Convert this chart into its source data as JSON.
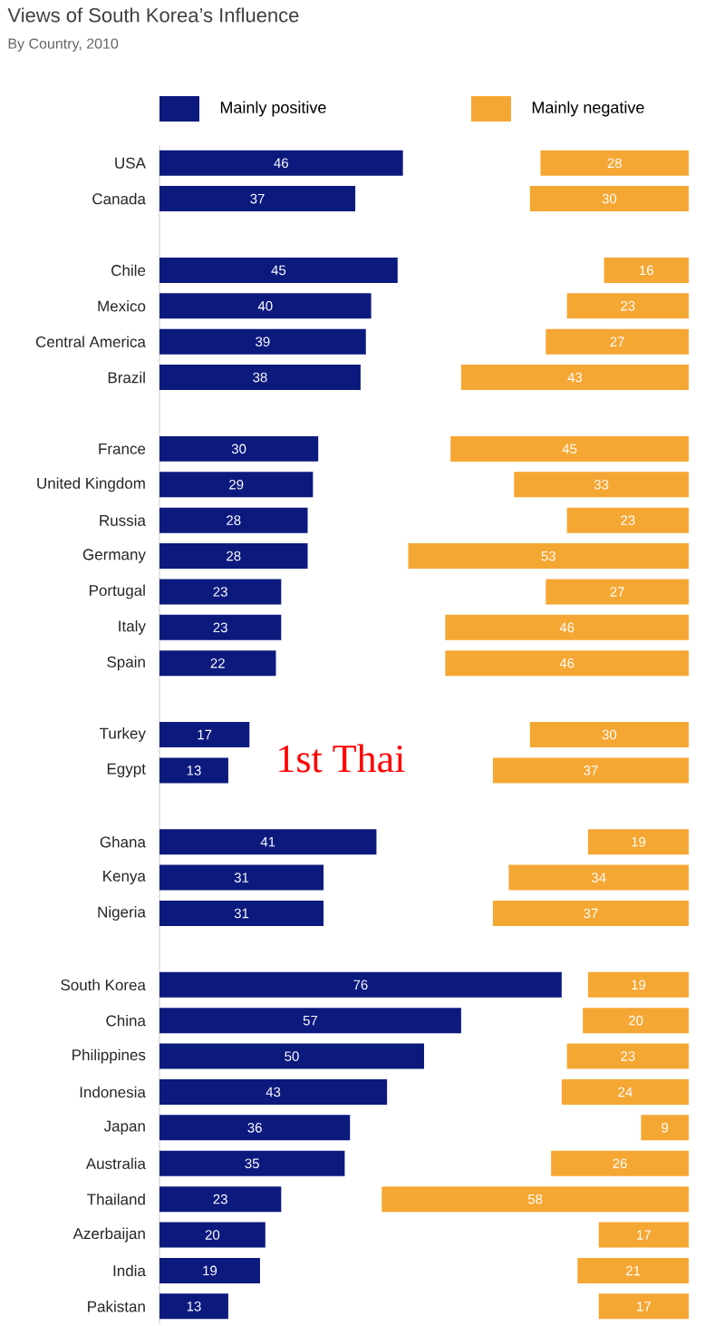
{
  "chart_data": [
    {
      "type": "bar",
      "orientation": "horizontal",
      "title": "Views of South Korea’s Influence",
      "subtitle": "By Country, 2010",
      "categories": [
        "USA",
        "Canada",
        null,
        "Chile",
        "Mexico",
        "Central America",
        "Brazil",
        null,
        "France",
        "United Kingdom",
        "Russia",
        "Germany",
        "Portugal",
        "Italy",
        "Spain",
        null,
        "Turkey",
        "Egypt",
        null,
        "Ghana",
        "Kenya",
        "Nigeria",
        null,
        "South Korea",
        "China",
        "Philippines",
        "Indonesia",
        "Japan",
        "Australia",
        "Thailand",
        "Azerbaijan",
        "India",
        "Pakistan"
      ],
      "series": [
        {
          "name": "Mainly positive",
          "color": "#0c1a7e",
          "values": [
            46,
            37,
            null,
            45,
            40,
            39,
            38,
            null,
            30,
            29,
            28,
            28,
            23,
            23,
            22,
            null,
            17,
            13,
            null,
            41,
            31,
            31,
            null,
            76,
            57,
            50,
            43,
            36,
            35,
            23,
            20,
            19,
            13
          ]
        }
      ],
      "data_labels": true,
      "legend": "top left",
      "tick_labels": "y",
      "annotations": [
        "1st Thai"
      ]
    },
    {
      "type": "bar",
      "orientation": "horizontal",
      "series": [
        {
          "name": "Mainly negative",
          "color": "#f5a733",
          "values": [
            28,
            30,
            null,
            16,
            23,
            27,
            43,
            null,
            45,
            33,
            23,
            53,
            27,
            46,
            46,
            null,
            30,
            37,
            null,
            19,
            34,
            37,
            null,
            19,
            20,
            23,
            24,
            9,
            26,
            58,
            17,
            21,
            17
          ]
        }
      ],
      "data_labels": true,
      "legend": "top right",
      "tick_labels": false
    }
  ]
}
